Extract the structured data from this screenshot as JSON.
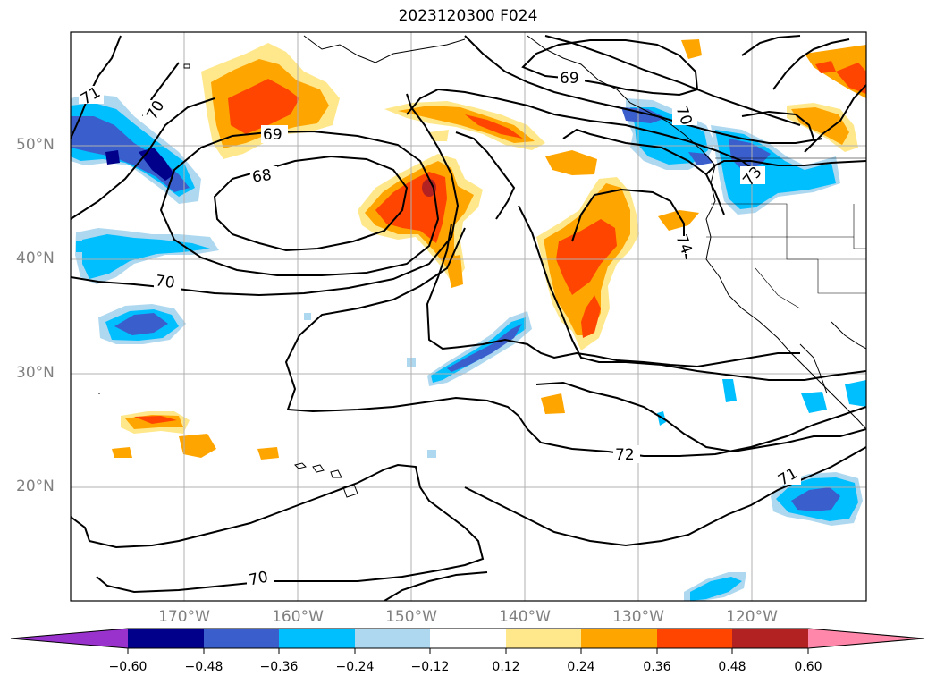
{
  "title": "2023120300 F024",
  "lat_labels": [
    "50°N",
    "40°N",
    "30°N",
    "20°N"
  ],
  "lon_labels": [
    "170°W",
    "160°W",
    "150°W",
    "140°W",
    "130°W",
    "120°W"
  ],
  "contour_labels": [
    "71",
    "70",
    "69",
    "68",
    "70",
    "69",
    "70",
    "73",
    "74",
    "72",
    "71",
    "70"
  ],
  "colorbar": {
    "ticks": [
      "−0.60",
      "−0.48",
      "−0.36",
      "−0.24",
      "−0.12",
      "0.12",
      "0.24",
      "0.36",
      "0.48",
      "0.60"
    ],
    "colors": [
      "#9932cc",
      "#00008b",
      "#3a5fcd",
      "#00bfff",
      "#add8f0",
      "#ffffff",
      "#ffe88c",
      "#ffa500",
      "#ff4500",
      "#b22222",
      "#ff88aa"
    ]
  }
}
